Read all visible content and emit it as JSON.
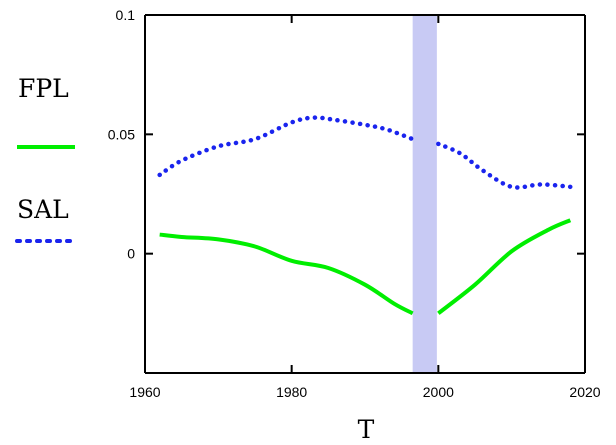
{
  "chart_data": {
    "type": "line",
    "xlabel": "T",
    "ylabel": "",
    "xlim": [
      1960,
      2020
    ],
    "ylim": [
      -0.05,
      0.1
    ],
    "x_ticks": [
      {
        "value": 1960,
        "label": "1960"
      },
      {
        "value": 1980,
        "label": "1980"
      },
      {
        "value": 2000,
        "label": "2000"
      },
      {
        "value": 2020,
        "label": "2020"
      }
    ],
    "y_ticks": [
      {
        "value": 0.1,
        "label": "0.1"
      },
      {
        "value": 0.05,
        "label": "0.05"
      },
      {
        "value": 0,
        "label": "0"
      }
    ],
    "grid": false,
    "legend_position": "left",
    "highlight_band": {
      "x_start": 1996.5,
      "x_end": 1999.8,
      "color": "#c8caf4"
    },
    "series": [
      {
        "name": "FPL",
        "color": "#00ee00",
        "style": "solid",
        "x": [
          1962,
          1965,
          1970,
          1975,
          1980,
          1985,
          1990,
          1994,
          1996.5,
          2000,
          2005,
          2010,
          2015,
          2018
        ],
        "values": [
          0.008,
          0.007,
          0.006,
          0.003,
          -0.003,
          -0.006,
          -0.013,
          -0.021,
          -0.025,
          -0.025,
          -0.013,
          0.001,
          0.01,
          0.014
        ]
      },
      {
        "name": "SAL",
        "color": "#1a24ee",
        "style": "dotted",
        "x": [
          1962,
          1965,
          1970,
          1975,
          1980,
          1983,
          1986,
          1990,
          1993,
          1996.5,
          2000,
          2003,
          2006,
          2010,
          2014,
          2018
        ],
        "values": [
          0.033,
          0.039,
          0.045,
          0.048,
          0.055,
          0.057,
          0.056,
          0.054,
          0.052,
          0.048,
          0.046,
          0.042,
          0.035,
          0.028,
          0.029,
          0.028
        ]
      }
    ]
  }
}
